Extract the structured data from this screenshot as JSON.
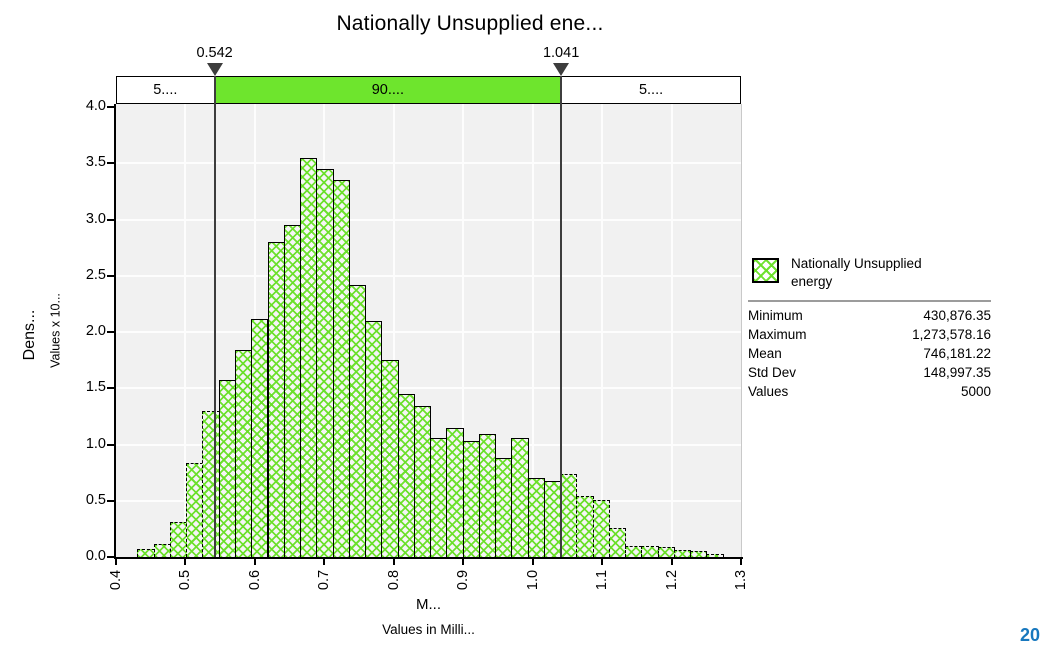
{
  "header": {
    "title": "Nationally Unsupplied ene..."
  },
  "band": {
    "left_label": "5....",
    "mid_label": "90....",
    "right_label": "5....",
    "left_delim_label": "0.542",
    "right_delim_label": "1.041",
    "green_color": "#6ee52d"
  },
  "y_axis": {
    "title": "Dens...",
    "subtitle": "Values x 10...",
    "ticks": [
      "4.0",
      "3.5",
      "3.0",
      "2.5",
      "2.0",
      "1.5",
      "1.0",
      "0.5",
      "0.0"
    ]
  },
  "x_axis": {
    "title": "M...",
    "subtitle": "Values in Milli...",
    "ticks": [
      "0.4",
      "0.5",
      "0.6",
      "0.7",
      "0.8",
      "0.9",
      "1.0",
      "1.1",
      "1.2",
      "1.3"
    ]
  },
  "legend": {
    "line1": "Nationally Unsupplied",
    "line2": "energy"
  },
  "stats": {
    "rows": [
      {
        "label": "Minimum",
        "value": "430,876.35"
      },
      {
        "label": "Maximum",
        "value": "1,273,578.16"
      },
      {
        "label": "Mean",
        "value": "746,181.22"
      },
      {
        "label": "Std Dev",
        "value": "148,997.35"
      },
      {
        "label": "Values",
        "value": "5000"
      }
    ]
  },
  "footer": {
    "page_number": "20"
  },
  "chart_data": {
    "type": "bar",
    "subtype": "histogram",
    "title": "Nationally Unsupplied ene...",
    "series_name": "Nationally Unsupplied energy",
    "xlabel": "M... (Values in Milli...)",
    "ylabel": "Dens... (Values x 10...)",
    "xlim": [
      0.4,
      1.3
    ],
    "ylim": [
      0.0,
      4.0
    ],
    "grid": true,
    "legend_position": "right",
    "bin_start": 0.4309,
    "bin_width": 0.023408,
    "values": [
      0.07,
      0.12,
      0.31,
      0.84,
      1.3,
      1.57,
      1.84,
      2.12,
      2.8,
      2.95,
      3.55,
      3.45,
      3.35,
      2.42,
      2.1,
      1.75,
      1.45,
      1.34,
      1.06,
      1.15,
      1.03,
      1.09,
      0.88,
      1.06,
      0.7,
      0.68,
      0.74,
      0.54,
      0.51,
      0.26,
      0.1,
      0.1,
      0.09,
      0.06,
      0.05,
      0.03
    ],
    "solid_bar_range": [
      5,
      25
    ],
    "delimiters": {
      "left": 0.542,
      "right": 1.041
    },
    "percentile_areas": [
      "5....",
      "90....",
      "5...."
    ],
    "statistics": {
      "minimum": 430876.35,
      "maximum": 1273578.16,
      "mean": 746181.22,
      "std_dev": 148997.35,
      "values": 5000
    }
  }
}
